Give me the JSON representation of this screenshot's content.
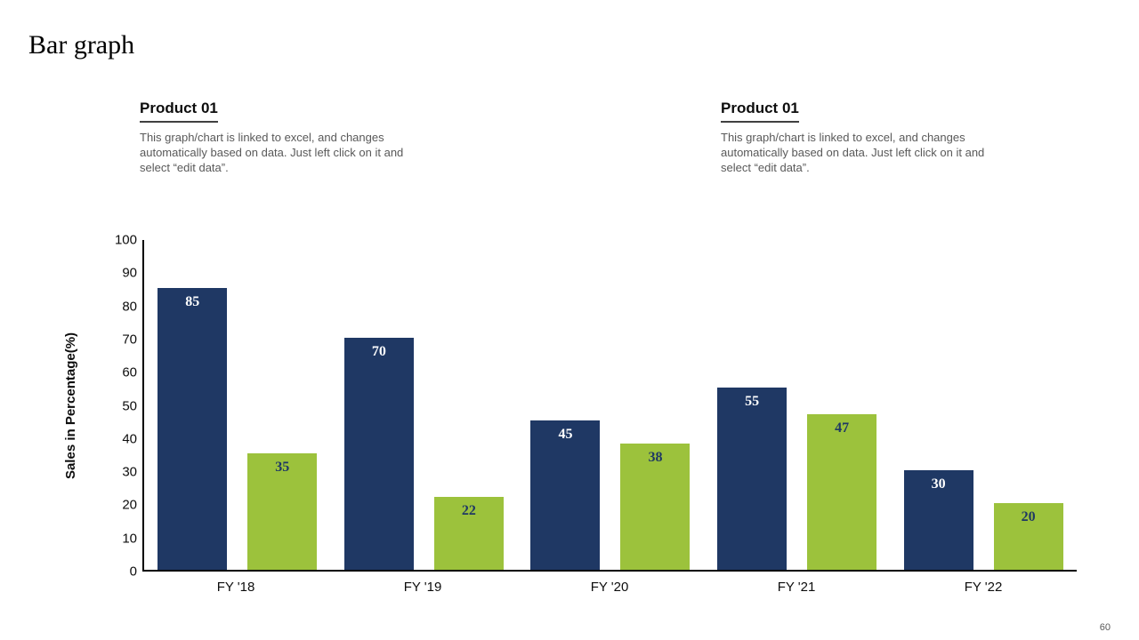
{
  "page": {
    "title": "Bar graph",
    "page_number": "60"
  },
  "text_blocks": [
    {
      "heading": "Product 01",
      "body": "This graph/chart is linked to excel, and changes automatically based on data. Just left click on it and select “edit data”."
    },
    {
      "heading": "Product 01",
      "body": "This graph/chart is linked to excel, and changes automatically based on data. Just left click on it and select “edit data”."
    }
  ],
  "chart_data": {
    "type": "bar",
    "categories": [
      "FY '18",
      "FY '19",
      "FY '20",
      "FY '21",
      "FY '22"
    ],
    "series": [
      {
        "color": "#1F3864",
        "label_color": "#ffffff",
        "values": [
          85,
          70,
          45,
          55,
          30
        ]
      },
      {
        "color": "#9CC23C",
        "label_color": "#1F3864",
        "values": [
          35,
          22,
          38,
          47,
          20
        ]
      }
    ],
    "ylabel": "Sales in Percentage(%)",
    "ylim": [
      0,
      100
    ],
    "yticks": [
      0,
      10,
      20,
      30,
      40,
      50,
      60,
      70,
      80,
      90,
      100
    ],
    "grid": false,
    "legend": "none"
  }
}
